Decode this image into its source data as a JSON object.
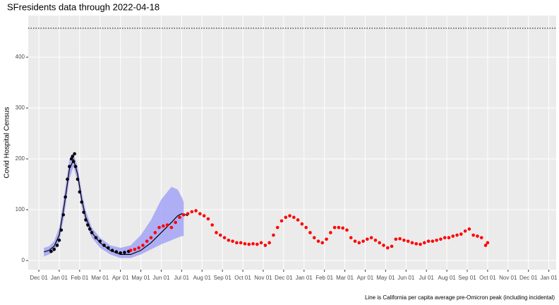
{
  "chart_data": {
    "type": "scatter",
    "title": "SFresidents data through 2022-04-18",
    "y_label": "Covid Hospital Census",
    "caption": "Line is California per capita average pre-Omicron peak (including incidental)",
    "xlim": [
      -0.52,
      25.36
    ],
    "ylim": [
      -18,
      482
    ],
    "xticks": [
      {
        "value": 0,
        "label": "Dec 01"
      },
      {
        "value": 1,
        "label": "Jan 01"
      },
      {
        "value": 2,
        "label": "Feb 01"
      },
      {
        "value": 3,
        "label": "Mar 01"
      },
      {
        "value": 4,
        "label": "Apr 01"
      },
      {
        "value": 5,
        "label": "May 01"
      },
      {
        "value": 6,
        "label": "Jun 01"
      },
      {
        "value": 7,
        "label": "Jul 01"
      },
      {
        "value": 8,
        "label": "Aug 01"
      },
      {
        "value": 9,
        "label": "Sep 01"
      },
      {
        "value": 10,
        "label": "Oct 01"
      },
      {
        "value": 11,
        "label": "Nov 01"
      },
      {
        "value": 12,
        "label": "Dec 01"
      },
      {
        "value": 13,
        "label": "Jan 01"
      },
      {
        "value": 14,
        "label": "Feb 01"
      },
      {
        "value": 15,
        "label": "Mar 01"
      },
      {
        "value": 16,
        "label": "Apr 01"
      },
      {
        "value": 17,
        "label": "May 01"
      },
      {
        "value": 18,
        "label": "Jun 01"
      },
      {
        "value": 19,
        "label": "Jul 01"
      },
      {
        "value": 20,
        "label": "Aug 01"
      },
      {
        "value": 21,
        "label": "Sep 01"
      },
      {
        "value": 22,
        "label": "Oct 01"
      },
      {
        "value": 23,
        "label": "Nov 01"
      },
      {
        "value": 24,
        "label": "Dec 01"
      },
      {
        "value": 25,
        "label": "Jan 01"
      }
    ],
    "yticks": [
      0,
      100,
      200,
      300,
      400
    ],
    "grid": true,
    "reference_line": 457,
    "ribbon": {
      "color": "#9f9ff7",
      "x": [
        0.25,
        0.5,
        0.75,
        1.0,
        1.25,
        1.5,
        1.7,
        1.9,
        2.1,
        2.3,
        2.6,
        3.0,
        3.5,
        4.0,
        4.5,
        5.0,
        5.5,
        6.0,
        6.5,
        6.8,
        7.0,
        7.1
      ],
      "lower": [
        8,
        12,
        18,
        35,
        90,
        160,
        185,
        155,
        105,
        72,
        45,
        25,
        12,
        5,
        5,
        12,
        22,
        32,
        40,
        45,
        48,
        48
      ],
      "upper": [
        25,
        28,
        38,
        65,
        130,
        200,
        210,
        185,
        135,
        98,
        65,
        45,
        30,
        25,
        30,
        50,
        80,
        120,
        145,
        140,
        125,
        115
      ]
    },
    "line": {
      "color": "#000000",
      "x": [
        0.25,
        0.5,
        0.75,
        1.0,
        1.25,
        1.5,
        1.7,
        1.9,
        2.1,
        2.3,
        2.6,
        3.0,
        3.5,
        4.0,
        4.5,
        5.0,
        5.5,
        6.0,
        6.5,
        6.8,
        7.0,
        7.2,
        7.3
      ],
      "values": [
        17,
        20,
        28,
        50,
        110,
        180,
        198,
        170,
        120,
        85,
        55,
        35,
        20,
        12,
        12,
        20,
        35,
        55,
        75,
        88,
        92,
        90,
        88
      ]
    },
    "series": [
      {
        "color": "#000000",
        "x": [
          0.6,
          0.75,
          0.9,
          1.0,
          1.1,
          1.2,
          1.3,
          1.4,
          1.5,
          1.6,
          1.65,
          1.7,
          1.75,
          1.8,
          1.9,
          2.0,
          2.1,
          2.2,
          2.3,
          2.4,
          2.5,
          2.6,
          2.8,
          3.0,
          3.2,
          3.4,
          3.6,
          3.8,
          4.0,
          4.2,
          4.4
        ],
        "values": [
          18,
          22,
          30,
          40,
          60,
          90,
          125,
          160,
          185,
          200,
          205,
          195,
          210,
          185,
          160,
          135,
          115,
          95,
          80,
          70,
          62,
          55,
          45,
          38,
          30,
          25,
          20,
          17,
          15,
          16,
          18
        ]
      },
      {
        "color": "#ff0000",
        "x": [
          4.5,
          4.7,
          4.9,
          5.1,
          5.3,
          5.5,
          5.7,
          5.9,
          6.1,
          6.3,
          6.5,
          6.7,
          6.9,
          7.1,
          7.3,
          7.5,
          7.7,
          7.9,
          8.1,
          8.3,
          8.5,
          8.7,
          8.9,
          9.1,
          9.3,
          9.5,
          9.7,
          9.9,
          10.1,
          10.3,
          10.5,
          10.7,
          10.9,
          11.1,
          11.3,
          11.5,
          11.7,
          11.9,
          12.1,
          12.3,
          12.5,
          12.7,
          12.9,
          13.1,
          13.3,
          13.5,
          13.7,
          13.9,
          14.1,
          14.3,
          14.5,
          14.7,
          14.9,
          15.1,
          15.3,
          15.5,
          15.7,
          15.9,
          16.1,
          16.3,
          16.5,
          16.7,
          16.9,
          17.1,
          17.3,
          17.5,
          17.7,
          17.9,
          18.1,
          18.3,
          18.5,
          18.7,
          18.9,
          19.1,
          19.3,
          19.5,
          19.7,
          19.9,
          20.1,
          20.3,
          20.5,
          20.7,
          20.9,
          21.1,
          21.3,
          21.5,
          21.7,
          21.9,
          22.0
        ],
        "values": [
          20,
          22,
          25,
          30,
          38,
          45,
          55,
          65,
          68,
          70,
          65,
          75,
          85,
          90,
          92,
          96,
          98,
          92,
          88,
          82,
          70,
          55,
          50,
          45,
          40,
          38,
          35,
          35,
          33,
          32,
          33,
          32,
          35,
          30,
          35,
          50,
          65,
          78,
          85,
          88,
          85,
          80,
          72,
          65,
          55,
          45,
          38,
          35,
          42,
          55,
          65,
          65,
          64,
          60,
          45,
          38,
          35,
          38,
          42,
          45,
          40,
          35,
          30,
          25,
          28,
          42,
          43,
          40,
          38,
          35,
          33,
          32,
          35,
          38,
          38,
          40,
          42,
          45,
          45,
          48,
          50,
          52,
          58,
          62,
          50,
          48,
          45,
          30,
          35
        ]
      }
    ]
  }
}
